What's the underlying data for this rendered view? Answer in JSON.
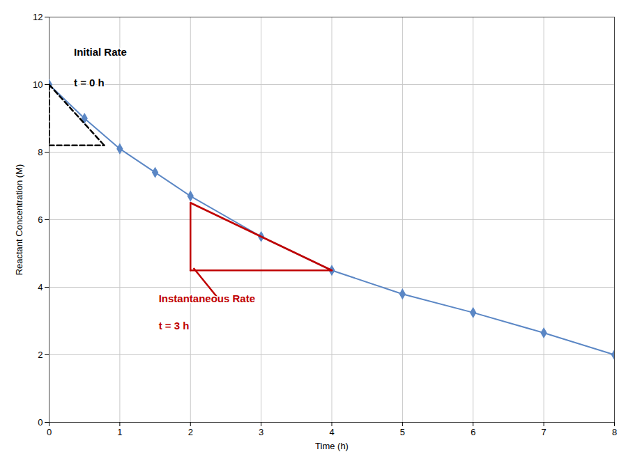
{
  "chart_data": {
    "type": "line",
    "x": [
      0,
      0.5,
      1,
      1.5,
      2,
      3,
      4,
      5,
      6,
      7,
      8
    ],
    "values": [
      10,
      9.0,
      8.1,
      7.4,
      6.7,
      5.5,
      4.5,
      3.8,
      3.25,
      2.65,
      2.0
    ],
    "color": "#5B87C5",
    "marker": "diamond",
    "xlabel": "Time (h)",
    "ylabel": "Reactant Concentration (M)",
    "xlim": [
      0,
      8
    ],
    "ylim": [
      0,
      12
    ],
    "xticks": [
      0,
      1,
      2,
      3,
      4,
      5,
      6,
      7,
      8
    ],
    "yticks": [
      0,
      2,
      4,
      6,
      8,
      10,
      12
    ],
    "grid": true,
    "shapes": [
      {
        "x": [
          0,
          0
        ],
        "y": [
          10,
          8.2
        ],
        "color": "#000000",
        "line_style": "dashed"
      },
      {
        "x": [
          0,
          0.78
        ],
        "y": [
          8.2,
          8.2
        ],
        "color": "#000000",
        "line_style": "dashed"
      },
      {
        "x": [
          0,
          0.78
        ],
        "y": [
          10,
          8.2
        ],
        "color": "#000000",
        "line_style": "dashed"
      },
      {
        "x": [
          2.0,
          2.0
        ],
        "y": [
          4.5,
          6.5
        ],
        "color": "#C00000",
        "line_style": "solid"
      },
      {
        "x": [
          2.0,
          4.0
        ],
        "y": [
          4.5,
          4.5
        ],
        "color": "#C00000",
        "line_style": "solid"
      },
      {
        "x": [
          2.0,
          4.0
        ],
        "y": [
          6.5,
          4.5
        ],
        "color": "#C00000",
        "line_style": "solid"
      },
      {
        "x": [
          2.05,
          2.4
        ],
        "y": [
          4.55,
          3.65
        ],
        "color": "#C00000",
        "line_style": "solid"
      }
    ],
    "annotations": [
      {
        "text": "Initial Rate",
        "x": 0.35,
        "y": 10.85,
        "color": "#000000"
      },
      {
        "text": "t = 0 h",
        "x": 0.35,
        "y": 9.95,
        "color": "#000000"
      },
      {
        "text": "Instantaneous Rate",
        "x": 1.55,
        "y": 3.55,
        "color": "#C00000"
      },
      {
        "text": "t = 3 h",
        "x": 1.55,
        "y": 2.75,
        "color": "#C00000"
      }
    ]
  }
}
